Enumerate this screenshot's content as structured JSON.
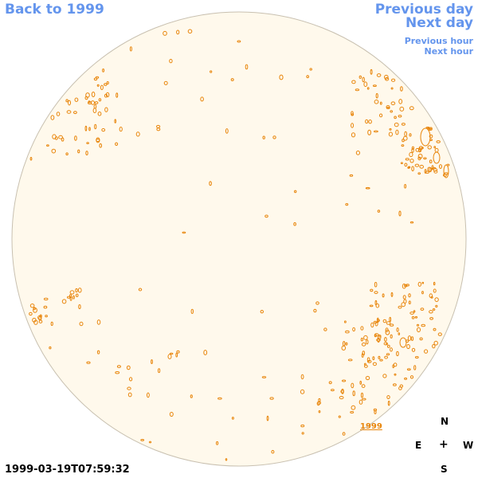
{
  "nav": {
    "back": "Back to 1999",
    "previous_day": "Previous day",
    "next_day": "Next day",
    "previous_hour": "Previous hour",
    "next_hour": "Next hour"
  },
  "timestamp": "1999-03-19T07:59:32",
  "year_tag": "1999",
  "compass": {
    "north": "N",
    "east": "E",
    "center": "+",
    "west": "W",
    "south": "S"
  },
  "colors": {
    "disk_fill": "#fff9ec",
    "disk_edge": "#c8c0b0",
    "contour": "#e8850a",
    "link": "#6495ed"
  }
}
